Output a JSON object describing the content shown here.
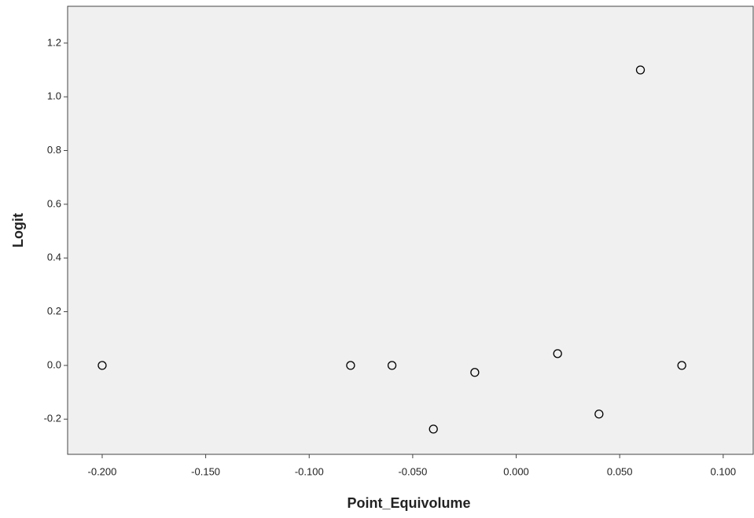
{
  "chart_data": {
    "type": "scatter",
    "x_label": "Point_Equivolume",
    "y_label": "Logit",
    "x": [
      -0.2,
      -0.08,
      -0.06,
      -0.04,
      -0.02,
      0.02,
      0.04,
      0.06,
      0.08
    ],
    "values": [
      0.0,
      0.0,
      0.0,
      -0.237,
      -0.026,
      0.044,
      -0.181,
      1.1,
      0.0
    ],
    "color": "#000000",
    "xlim": [
      -0.2167,
      0.1145
    ],
    "ylim": [
      -0.331,
      1.337
    ],
    "xticks": [
      {
        "value": -0.2,
        "label": "-0.200"
      },
      {
        "value": -0.15,
        "label": "-0.150"
      },
      {
        "value": -0.1,
        "label": "-0.100"
      },
      {
        "value": -0.05,
        "label": "-0.050"
      },
      {
        "value": 0,
        "label": "0.000"
      },
      {
        "value": 0.05,
        "label": "0.050"
      },
      {
        "value": 0.1,
        "label": "0.100"
      }
    ],
    "yticks": [
      {
        "value": -0.2,
        "label": "-0.2"
      },
      {
        "value": 0,
        "label": "0.0"
      },
      {
        "value": 0.2,
        "label": "0.2"
      },
      {
        "value": 0.4,
        "label": "0.4"
      },
      {
        "value": 0.6,
        "label": "0.6"
      },
      {
        "value": 0.8,
        "label": "0.8"
      },
      {
        "value": 1.0,
        "label": "1.0"
      },
      {
        "value": 1.2,
        "label": "1.2"
      }
    ],
    "grid": false
  }
}
